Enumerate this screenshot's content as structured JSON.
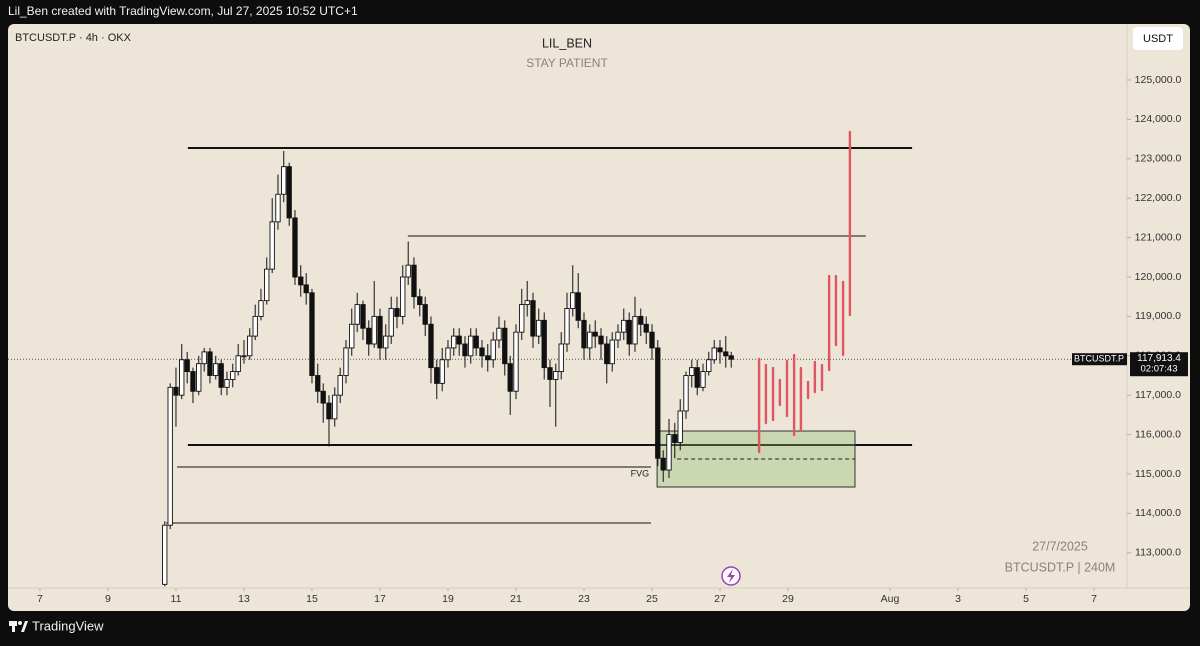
{
  "header": {
    "text": "Lil_Ben created with TradingView.com, Jul 27, 2025 10:52 UTC+1"
  },
  "footer": {
    "brand": "TradingView"
  },
  "chart_data": {
    "type": "candlestick",
    "symbol_info": "BTCUSDT.P · 4h · OKX",
    "title": "LIL_BEN",
    "subtitle": "STAY PATIENT",
    "currency": "USDT",
    "watermark_date": "27/7/2025",
    "watermark_symbol": "BTCUSDT.P | 240M",
    "xlim": [
      6.06,
      38.97
    ],
    "ylim": [
      112107,
      126421
    ],
    "xticks": [
      7,
      9,
      11,
      13,
      15,
      17,
      19,
      21,
      23,
      25,
      27,
      29,
      {
        "value": 32,
        "label": "Aug"
      },
      {
        "value": 34,
        "label": "3"
      },
      {
        "value": 36,
        "label": "5"
      },
      {
        "value": 38,
        "label": "7"
      }
    ],
    "yticks": [
      {
        "value": 113000,
        "label": "113,000.0"
      },
      {
        "value": 114000,
        "label": "114,000.0"
      },
      {
        "value": 115000,
        "label": "115,000.0"
      },
      {
        "value": 116000,
        "label": "116,000.0"
      },
      {
        "value": 117000,
        "label": "117,000.0"
      },
      {
        "value": 118000,
        "label": "118,000.0"
      },
      {
        "value": 119000,
        "label": "119,000.0"
      },
      {
        "value": 120000,
        "label": "120,000.0"
      },
      {
        "value": 121000,
        "label": "121,000.0"
      },
      {
        "value": 122000,
        "label": "122,000.0"
      },
      {
        "value": 123000,
        "label": "123,000.0"
      },
      {
        "value": 124000,
        "label": "124,000.0"
      },
      {
        "value": 125000,
        "label": "125,000.0"
      }
    ],
    "x": [
      10.67,
      10.83,
      11,
      11.17,
      11.33,
      11.5,
      11.67,
      11.83,
      12,
      12.17,
      12.33,
      12.5,
      12.67,
      12.83,
      13,
      13.17,
      13.33,
      13.5,
      13.67,
      13.83,
      14,
      14.17,
      14.33,
      14.5,
      14.67,
      14.83,
      15,
      15.17,
      15.33,
      15.5,
      15.67,
      15.83,
      16,
      16.17,
      16.33,
      16.5,
      16.67,
      16.83,
      17,
      17.17,
      17.33,
      17.5,
      17.67,
      17.83,
      18,
      18.17,
      18.33,
      18.5,
      18.67,
      18.83,
      19,
      19.17,
      19.33,
      19.5,
      19.67,
      19.83,
      20,
      20.17,
      20.33,
      20.5,
      20.67,
      20.83,
      21,
      21.17,
      21.33,
      21.5,
      21.67,
      21.83,
      22,
      22.17,
      22.33,
      22.5,
      22.67,
      22.83,
      23,
      23.17,
      23.33,
      23.5,
      23.67,
      23.83,
      24,
      24.17,
      24.33,
      24.5,
      24.67,
      24.83,
      25,
      25.17,
      25.33,
      25.5,
      25.67,
      25.83,
      26,
      26.17,
      26.33,
      26.5,
      26.67,
      26.83,
      27,
      27.17,
      27.33
    ],
    "series": [
      {
        "name": "BTCUSDT.P",
        "open": [
          112200,
          113700,
          117200,
          117000,
          117900,
          117600,
          117100,
          117800,
          118100,
          117500,
          117800,
          117200,
          117400,
          117600,
          118000,
          118000,
          118500,
          119000,
          119400,
          120200,
          121400,
          122100,
          122800,
          121500,
          120000,
          119800,
          119600,
          117500,
          117100,
          116800,
          116400,
          117000,
          117500,
          118200,
          118800,
          119300,
          118700,
          118300,
          119000,
          118200,
          118500,
          119200,
          119000,
          120000,
          120300,
          119500,
          119300,
          118800,
          117700,
          117300,
          117900,
          118200,
          118500,
          118300,
          118000,
          118500,
          118200,
          118000,
          117900,
          118400,
          118700,
          117800,
          117100,
          118600,
          119300,
          119400,
          118500,
          118900,
          117700,
          117400,
          117600,
          118300,
          119200,
          119600,
          118900,
          118200,
          118600,
          118500,
          118300,
          117800,
          118400,
          118600,
          118900,
          118300,
          119000,
          118800,
          118600,
          118200,
          115400,
          115100,
          116000,
          115800,
          116600,
          117500,
          117700,
          117200,
          117600,
          117900,
          118200,
          118100,
          118000
        ],
        "high": [
          113800,
          117300,
          117700,
          118300,
          118100,
          117700,
          118000,
          118200,
          118200,
          118000,
          117900,
          117600,
          117800,
          118300,
          118400,
          118700,
          119300,
          119700,
          120500,
          122000,
          122600,
          123200,
          122900,
          121700,
          120300,
          120100,
          119700,
          117800,
          117300,
          117000,
          117200,
          117700,
          118400,
          119200,
          119600,
          119400,
          118900,
          119900,
          119200,
          118800,
          119500,
          119500,
          120300,
          120900,
          120500,
          119700,
          119500,
          119000,
          117900,
          118200,
          118400,
          118700,
          118700,
          118500,
          118700,
          118700,
          118400,
          118300,
          118600,
          119000,
          118900,
          118000,
          118800,
          119700,
          119900,
          119600,
          119200,
          119100,
          117900,
          117800,
          118600,
          119600,
          120300,
          120100,
          119100,
          118800,
          118900,
          118700,
          118500,
          118600,
          118800,
          119200,
          119100,
          119500,
          119200,
          119000,
          118800,
          118400,
          115600,
          116400,
          116300,
          116900,
          117600,
          117900,
          117900,
          117800,
          118100,
          118400,
          118400,
          118500,
          118100
        ],
        "low": [
          112150,
          113600,
          116200,
          116900,
          117300,
          116800,
          117000,
          117600,
          117300,
          117400,
          117000,
          117000,
          117200,
          117500,
          117800,
          117900,
          118400,
          118900,
          119300,
          120100,
          121200,
          121900,
          121300,
          119800,
          119500,
          119300,
          117300,
          116800,
          116300,
          115700,
          116200,
          116800,
          117300,
          118000,
          118600,
          118400,
          118000,
          118200,
          117900,
          117900,
          118300,
          118700,
          118800,
          119800,
          119200,
          119000,
          118500,
          117300,
          116900,
          117100,
          117700,
          118000,
          118000,
          117700,
          117800,
          118000,
          117700,
          117600,
          117700,
          118200,
          117500,
          116500,
          116900,
          118400,
          119000,
          118200,
          118300,
          117400,
          116700,
          116200,
          117400,
          118100,
          119000,
          118700,
          117900,
          117900,
          118200,
          117900,
          117300,
          117600,
          118200,
          118400,
          118000,
          118100,
          118500,
          118300,
          117900,
          115200,
          114800,
          114900,
          115400,
          115600,
          116400,
          117200,
          117000,
          117100,
          117500,
          117800,
          117800,
          117700,
          117700
        ],
        "close": [
          113700,
          117200,
          117000,
          117900,
          117600,
          117100,
          117800,
          118100,
          117500,
          117800,
          117200,
          117400,
          117600,
          118000,
          118000,
          118500,
          119000,
          119400,
          120200,
          121400,
          122100,
          122800,
          121500,
          120000,
          119800,
          119600,
          117500,
          117100,
          116800,
          116400,
          117000,
          117500,
          118200,
          118800,
          119300,
          118700,
          118300,
          119000,
          118200,
          118500,
          119200,
          119000,
          120000,
          120300,
          119500,
          119300,
          118800,
          117700,
          117300,
          117900,
          118200,
          118500,
          118300,
          118000,
          118500,
          118200,
          118000,
          117900,
          118400,
          118700,
          117800,
          117100,
          118600,
          119300,
          119400,
          118500,
          118900,
          117700,
          117400,
          117600,
          118300,
          119200,
          119600,
          118900,
          118200,
          118600,
          118500,
          118300,
          117800,
          118400,
          118600,
          118900,
          118300,
          119000,
          118800,
          118600,
          118200,
          115400,
          115100,
          116000,
          115800,
          116600,
          117500,
          117700,
          117200,
          117600,
          117900,
          118200,
          118100,
          118000,
          117913.4
        ]
      }
    ],
    "last_price": {
      "value": 117913.4,
      "label": "117,913.4"
    },
    "countdown": "02:07:43",
    "symbol_tag": "BTCUSDT.P",
    "horizontal_lines": [
      {
        "price": 123274,
        "from": 11.35,
        "to": 32.65
      },
      {
        "price": 121041,
        "from": 17.82,
        "to": 31.29
      },
      {
        "price": 115736,
        "from": 11.35,
        "to": 32.65
      },
      {
        "price": 115178,
        "from": 11.03,
        "to": 24.97
      },
      {
        "price": 113756,
        "from": 10.71,
        "to": 24.97
      }
    ],
    "fvg": {
      "label": "FVG",
      "top": 116091,
      "bottom": 114670,
      "from": 25.15,
      "to": 30.97,
      "mid": 115381,
      "mid_from": 25.74
    },
    "projection": {
      "color": "#e0565e",
      "x": [
        28.15,
        28.35,
        28.56,
        28.76,
        28.97,
        29.18,
        29.38,
        29.59,
        29.79,
        30.0,
        30.21,
        30.41,
        30.62,
        30.82
      ],
      "high": [
        117919,
        117766,
        117690,
        117386,
        117868,
        118020,
        117690,
        117335,
        117843,
        117766,
        120025,
        120025,
        119873,
        123680
      ],
      "low": [
        115558,
        116294,
        116371,
        116751,
        116472,
        115990,
        116117,
        116929,
        117081,
        117132,
        117640,
        118274,
        118020,
        119036
      ]
    }
  }
}
